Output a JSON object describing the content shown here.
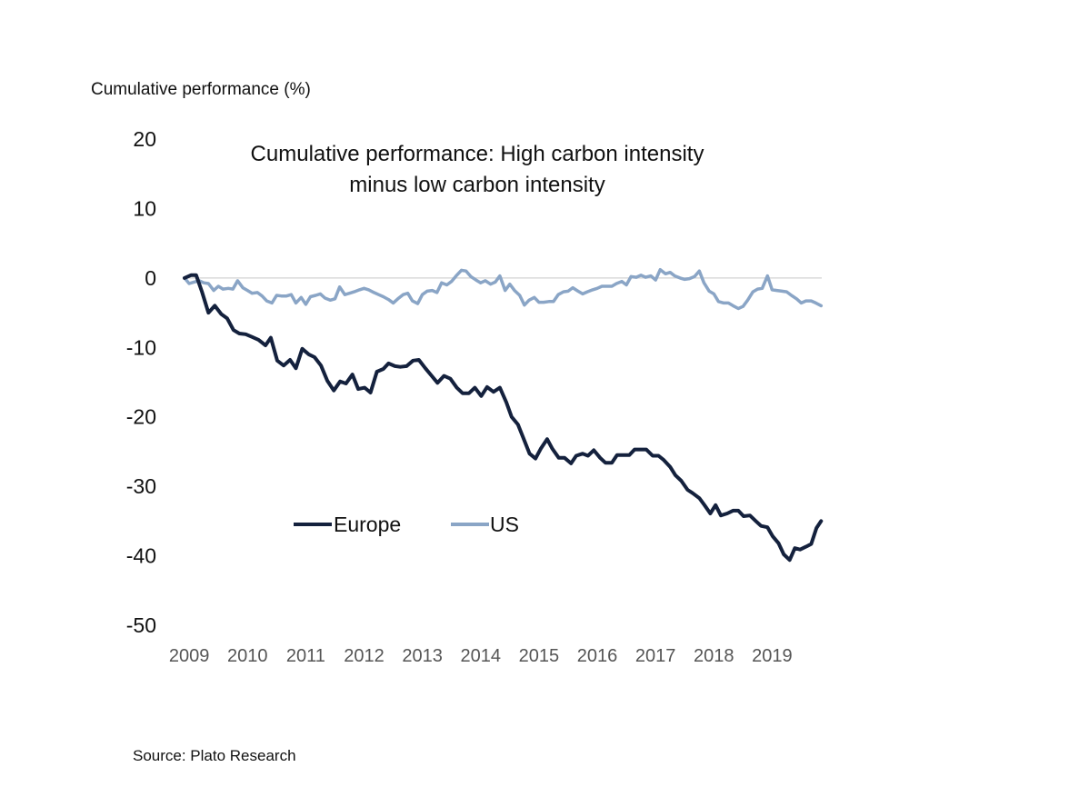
{
  "chart_data": {
    "type": "line",
    "title": "Cumulative performance: High carbon intensity minus low carbon intensity",
    "title_lines": [
      "Cumulative performance: High carbon intensity",
      "minus low carbon intensity"
    ],
    "ylabel": "Cumulative performance (%)",
    "xlabel": "",
    "ylim": [
      -50,
      20
    ],
    "yticks": [
      20,
      10,
      0,
      -10,
      -20,
      -30,
      -40,
      -50
    ],
    "xlim": [
      2009.0,
      2019.9
    ],
    "xticks": [
      2009,
      2010,
      2011,
      2012,
      2013,
      2014,
      2015,
      2016,
      2017,
      2018,
      2019
    ],
    "xtick_labels": [
      "2009",
      "2010",
      "2011",
      "2012",
      "2013",
      "2014",
      "2015",
      "2016",
      "2017",
      "2018",
      "2019"
    ],
    "grid": false,
    "zero_line": true,
    "legend_position": "lower-left",
    "series": [
      {
        "name": "Europe",
        "color": "#14213d",
        "x": [
          2009.0,
          2009.11,
          2009.2,
          2009.3,
          2009.41,
          2009.52,
          2009.63,
          2009.73,
          2009.84,
          2009.94,
          2010.05,
          2010.16,
          2010.27,
          2010.39,
          2010.48,
          2010.59,
          2010.7,
          2010.81,
          2010.91,
          2011.02,
          2011.13,
          2011.23,
          2011.34,
          2011.45,
          2011.56,
          2011.67,
          2011.77,
          2011.88,
          2011.98,
          2012.09,
          2012.19,
          2012.3,
          2012.41,
          2012.5,
          2012.61,
          2012.7,
          2012.81,
          2012.92,
          2013.02,
          2013.13,
          2013.23,
          2013.34,
          2013.45,
          2013.56,
          2013.67,
          2013.77,
          2013.88,
          2013.98,
          2014.09,
          2014.19,
          2014.3,
          2014.41,
          2014.52,
          2014.61,
          2014.72,
          2014.81,
          2014.92,
          2015.02,
          2015.11,
          2015.22,
          2015.31,
          2015.42,
          2015.52,
          2015.63,
          2015.72,
          2015.83,
          2015.92,
          2016.02,
          2016.13,
          2016.22,
          2016.33,
          2016.42,
          2016.53,
          2016.63,
          2016.72,
          2016.83,
          2016.92,
          2017.03,
          2017.13,
          2017.22,
          2017.33,
          2017.42,
          2017.52,
          2017.63,
          2017.72,
          2017.83,
          2017.92,
          2018.02,
          2018.11,
          2018.2,
          2018.31,
          2018.41,
          2018.5,
          2018.59,
          2018.7,
          2018.8,
          2018.89,
          2019.0,
          2019.09,
          2019.19,
          2019.28,
          2019.38,
          2019.47,
          2019.56,
          2019.66,
          2019.75,
          2019.84,
          2019.92
        ],
        "values": [
          0,
          0.4,
          0.4,
          -2.0,
          -5.0,
          -4.0,
          -5.2,
          -5.8,
          -7.5,
          -8.0,
          -8.1,
          -8.5,
          -8.9,
          -9.7,
          -8.6,
          -11.9,
          -12.6,
          -11.8,
          -13.0,
          -10.2,
          -11.0,
          -11.4,
          -12.6,
          -14.8,
          -16.2,
          -14.9,
          -15.2,
          -13.9,
          -16.0,
          -15.8,
          -16.5,
          -13.5,
          -13.1,
          -12.3,
          -12.7,
          -12.8,
          -12.7,
          -11.9,
          -11.8,
          -13.0,
          -14.0,
          -15.1,
          -14.1,
          -14.5,
          -15.8,
          -16.6,
          -16.6,
          -15.8,
          -17.0,
          -15.7,
          -16.4,
          -15.8,
          -17.9,
          -20.0,
          -21.1,
          -23.0,
          -25.3,
          -26.0,
          -24.6,
          -23.2,
          -24.6,
          -25.9,
          -25.9,
          -26.7,
          -25.6,
          -25.3,
          -25.6,
          -24.8,
          -25.9,
          -26.6,
          -26.6,
          -25.5,
          -25.5,
          -25.5,
          -24.7,
          -24.7,
          -24.7,
          -25.6,
          -25.6,
          -26.2,
          -27.2,
          -28.4,
          -29.2,
          -30.5,
          -31.0,
          -31.7,
          -32.7,
          -33.9,
          -32.7,
          -34.2,
          -33.9,
          -33.5,
          -33.5,
          -34.3,
          -34.2,
          -35.0,
          -35.7,
          -35.9,
          -37.2,
          -38.2,
          -39.8,
          -40.6,
          -38.9,
          -39.1,
          -38.7,
          -38.3,
          -36.0,
          -35.0
        ]
      },
      {
        "name": "US",
        "color": "#8aa5c6",
        "x": [
          2009.0,
          2009.08,
          2009.16,
          2009.25,
          2009.33,
          2009.41,
          2009.5,
          2009.58,
          2009.66,
          2009.75,
          2009.83,
          2009.91,
          2010.0,
          2010.08,
          2010.16,
          2010.25,
          2010.33,
          2010.41,
          2010.5,
          2010.58,
          2010.66,
          2010.75,
          2010.83,
          2010.91,
          2011.0,
          2011.08,
          2011.16,
          2011.25,
          2011.33,
          2011.41,
          2011.5,
          2011.58,
          2011.66,
          2011.75,
          2011.83,
          2011.91,
          2012.0,
          2012.08,
          2012.16,
          2012.25,
          2012.33,
          2012.41,
          2012.5,
          2012.58,
          2012.66,
          2012.75,
          2012.83,
          2012.91,
          2013.0,
          2013.08,
          2013.16,
          2013.25,
          2013.33,
          2013.41,
          2013.5,
          2013.58,
          2013.66,
          2013.75,
          2013.83,
          2013.91,
          2014.0,
          2014.08,
          2014.16,
          2014.25,
          2014.33,
          2014.41,
          2014.5,
          2014.58,
          2014.66,
          2014.75,
          2014.83,
          2014.91,
          2015.0,
          2015.08,
          2015.16,
          2015.25,
          2015.33,
          2015.41,
          2015.5,
          2015.58,
          2015.66,
          2015.75,
          2015.83,
          2015.91,
          2016.0,
          2016.08,
          2016.16,
          2016.25,
          2016.33,
          2016.41,
          2016.5,
          2016.58,
          2016.66,
          2016.75,
          2016.83,
          2016.91,
          2017.0,
          2017.08,
          2017.16,
          2017.25,
          2017.33,
          2017.41,
          2017.5,
          2017.58,
          2017.66,
          2017.75,
          2017.83,
          2017.91,
          2018.0,
          2018.08,
          2018.16,
          2018.25,
          2018.33,
          2018.41,
          2018.5,
          2018.58,
          2018.66,
          2018.75,
          2018.83,
          2018.91,
          2019.0,
          2019.08,
          2019.16,
          2019.25,
          2019.33,
          2019.41,
          2019.5,
          2019.58,
          2019.66,
          2019.75,
          2019.83,
          2019.92
        ],
        "values": [
          0,
          -0.8,
          -0.6,
          -0.4,
          -0.7,
          -0.8,
          -1.8,
          -1.2,
          -1.6,
          -1.5,
          -1.6,
          -0.4,
          -1.4,
          -1.8,
          -2.2,
          -2.1,
          -2.6,
          -3.3,
          -3.6,
          -2.5,
          -2.6,
          -2.6,
          -2.4,
          -3.6,
          -2.8,
          -3.8,
          -2.7,
          -2.5,
          -2.3,
          -2.9,
          -3.2,
          -3.0,
          -1.3,
          -2.4,
          -2.2,
          -2.0,
          -1.7,
          -1.5,
          -1.7,
          -2.1,
          -2.4,
          -2.7,
          -3.1,
          -3.6,
          -3.0,
          -2.4,
          -2.2,
          -3.3,
          -3.7,
          -2.4,
          -1.9,
          -1.8,
          -2.1,
          -0.7,
          -1.0,
          -0.5,
          0.3,
          1.1,
          1.0,
          0.2,
          -0.3,
          -0.7,
          -0.4,
          -0.9,
          -0.6,
          0.3,
          -1.8,
          -0.9,
          -1.8,
          -2.5,
          -3.9,
          -3.2,
          -2.8,
          -3.5,
          -3.5,
          -3.4,
          -3.4,
          -2.4,
          -2.0,
          -1.9,
          -1.4,
          -1.9,
          -2.3,
          -2.0,
          -1.7,
          -1.5,
          -1.2,
          -1.2,
          -1.2,
          -0.8,
          -0.5,
          -1.0,
          0.2,
          0.1,
          0.4,
          0.1,
          0.3,
          -0.3,
          1.2,
          0.6,
          0.8,
          0.3,
          0.0,
          -0.2,
          -0.1,
          0.2,
          1.0,
          -0.7,
          -1.9,
          -2.3,
          -3.4,
          -3.6,
          -3.6,
          -4.0,
          -4.4,
          -4.1,
          -3.2,
          -2.0,
          -1.6,
          -1.5,
          0.3,
          -1.7,
          -1.8,
          -1.9,
          -2.0,
          -2.5,
          -3.0,
          -3.6,
          -3.3,
          -3.3,
          -3.6,
          -4.0
        ]
      }
    ]
  },
  "labels": {
    "y_axis_title": "Cumulative performance (%)",
    "title_line1": "Cumulative performance: High carbon intensity",
    "title_line2": "minus low carbon intensity",
    "legend_europe": "Europe",
    "legend_us": "US",
    "source": "Source: Plato Research"
  }
}
